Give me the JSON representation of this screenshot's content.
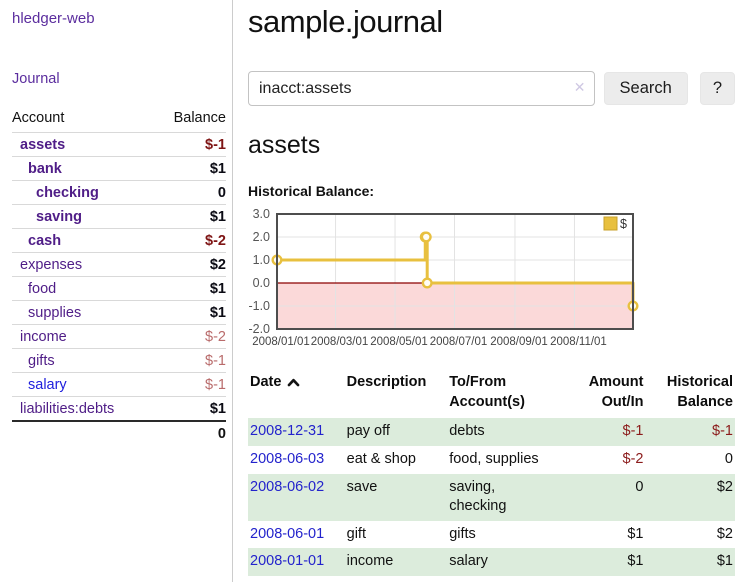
{
  "app": {
    "brand": "hledger-web",
    "nav_journal": "Journal"
  },
  "sidebar": {
    "header": {
      "account": "Account",
      "balance": "Balance"
    },
    "accounts": [
      {
        "name": "assets",
        "balance": "$-1",
        "indent": 1,
        "bold": true,
        "link_color": "purple",
        "balance_color": "dark"
      },
      {
        "name": "bank",
        "balance": "$1",
        "indent": 2,
        "bold": true,
        "link_color": "purple",
        "balance_color": "black"
      },
      {
        "name": "checking",
        "balance": "0",
        "indent": 3,
        "bold": true,
        "link_color": "purple",
        "balance_color": "black"
      },
      {
        "name": "saving",
        "balance": "$1",
        "indent": 3,
        "bold": true,
        "link_color": "purple",
        "balance_color": "black"
      },
      {
        "name": "cash",
        "balance": "$-2",
        "indent": 2,
        "bold": true,
        "link_color": "purple",
        "balance_color": "dark"
      },
      {
        "name": "expenses",
        "balance": "$2",
        "indent": 1,
        "bold": false,
        "link_color": "purple",
        "balance_color": "black"
      },
      {
        "name": "food",
        "balance": "$1",
        "indent": 2,
        "bold": false,
        "link_color": "purple",
        "balance_color": "black"
      },
      {
        "name": "supplies",
        "balance": "$1",
        "indent": 2,
        "bold": false,
        "link_color": "purple",
        "balance_color": "black"
      },
      {
        "name": "income",
        "balance": "$-2",
        "indent": 1,
        "bold": false,
        "link_color": "purple",
        "balance_color": "rose"
      },
      {
        "name": "gifts",
        "balance": "$-1",
        "indent": 2,
        "bold": false,
        "link_color": "purple",
        "balance_color": "rose"
      },
      {
        "name": "salary",
        "balance": "$-1",
        "indent": 2,
        "bold": false,
        "link_color": "blue",
        "balance_color": "rose"
      },
      {
        "name": "liabilities:debts",
        "balance": "$1",
        "indent": 1,
        "bold": false,
        "link_color": "purple",
        "balance_color": "black"
      }
    ],
    "total": "0"
  },
  "header": {
    "title": "sample.journal"
  },
  "search": {
    "value": "inacct:assets",
    "clear_label": "✕",
    "button_label": "Search",
    "help_label": "?"
  },
  "account_page": {
    "heading": "assets",
    "chart_title": "Historical Balance:"
  },
  "chart_data": {
    "type": "line",
    "step": true,
    "title": "Historical Balance:",
    "legend": [
      {
        "label": "$",
        "color": "#e8c03f"
      }
    ],
    "legend_position": "top-right",
    "x_range": [
      "2008-01-01",
      "2008-12-31"
    ],
    "points": [
      {
        "date": "2008-01-01",
        "value": 1
      },
      {
        "date": "2008-06-01",
        "value": 2
      },
      {
        "date": "2008-06-02",
        "value": 2
      },
      {
        "date": "2008-06-03",
        "value": 0
      },
      {
        "date": "2008-12-31",
        "value": -1
      }
    ],
    "ylim": [
      -2,
      3
    ],
    "y_tick_values": [
      3,
      2,
      1,
      0,
      -1,
      -2
    ],
    "y_tick_labels": [
      "3.0",
      "2.0",
      "1.0",
      "0.0",
      "-1.0",
      "-2.0"
    ],
    "x_tick_dates": [
      "2008-01-01",
      "2008-03-01",
      "2008-05-01",
      "2008-07-01",
      "2008-09-01",
      "2008-11-01"
    ],
    "x_tick_labels": [
      "2008/01/01",
      "2008/03/01",
      "2008/05/01",
      "2008/07/01",
      "2008/09/01",
      "2008/11/01"
    ],
    "grid": true,
    "line_color": "#e8c03f",
    "marker_fill": "#fffdf5",
    "negative_region_color": "#fbd9d9",
    "zero_line_color": "#8b0000",
    "plot_border_color": "#4d4d4d",
    "grid_color": "#e3e3e3"
  },
  "register": {
    "headers": {
      "date": "Date",
      "description": "Description",
      "account_line1": "To/From",
      "account_line2": "Account(s)",
      "amount_line1": "Amount",
      "amount_line2": "Out/In",
      "balance_line1": "Historical",
      "balance_line2": "Balance"
    },
    "rows": [
      {
        "date": "2008-12-31",
        "description": "pay off",
        "accounts": "debts",
        "amount": "$-1",
        "amount_negative": true,
        "balance": "$-1",
        "balance_negative": true
      },
      {
        "date": "2008-06-03",
        "description": "eat & shop",
        "accounts": "food, supplies",
        "amount": "$-2",
        "amount_negative": true,
        "balance": "0",
        "balance_negative": false
      },
      {
        "date": "2008-06-02",
        "description": "save",
        "accounts": "saving,\nchecking",
        "amount": "0",
        "amount_negative": false,
        "balance": "$2",
        "balance_negative": false
      },
      {
        "date": "2008-06-01",
        "description": "gift",
        "accounts": "gifts",
        "amount": "$1",
        "amount_negative": false,
        "balance": "$2",
        "balance_negative": false
      },
      {
        "date": "2008-01-01",
        "description": "income",
        "accounts": "salary",
        "amount": "$1",
        "amount_negative": false,
        "balance": "$1",
        "balance_negative": false
      }
    ]
  }
}
